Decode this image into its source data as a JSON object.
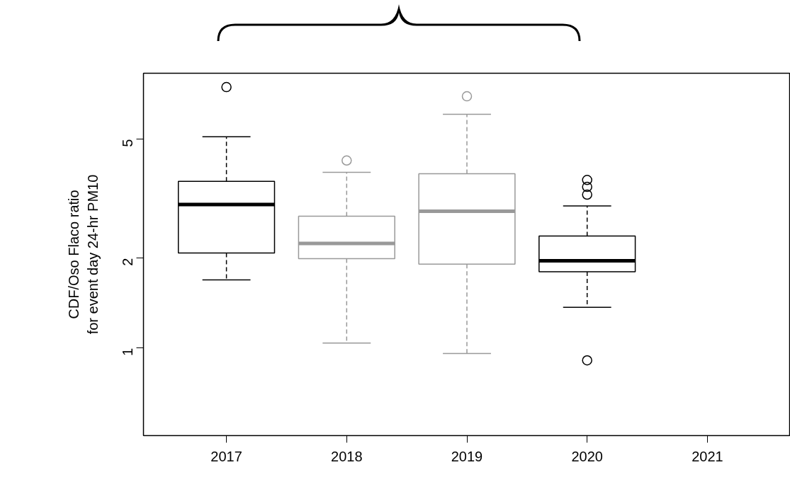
{
  "chart_data": {
    "type": "box",
    "ylabel": "CDF/Oso Flaco ratio\nfor event day 24-hr PM10",
    "categories": [
      "2017",
      "2018",
      "2019",
      "2020",
      "2021"
    ],
    "boxes": [
      {
        "low": 1.69,
        "q1": 2.08,
        "median": 3.02,
        "q3": 3.61,
        "high": 5.09,
        "outliers": [
          7.46
        ]
      },
      {
        "low": 1.04,
        "q1": 1.99,
        "median": 2.24,
        "q3": 2.76,
        "high": 3.87,
        "outliers": [
          4.24
        ]
      },
      {
        "low": 0.96,
        "q1": 1.91,
        "median": 2.87,
        "q3": 3.83,
        "high": 6.05,
        "outliers": [
          6.95
        ]
      },
      {
        "low": 1.37,
        "q1": 1.8,
        "median": 1.96,
        "q3": 2.37,
        "high": 2.99,
        "outliers": [
          3.65,
          3.46,
          3.26,
          0.91
        ]
      },
      null
    ],
    "colors": [
      "#000000",
      "#999999",
      "#999999",
      "#000000",
      null
    ],
    "log": "y",
    "ylim": [
      0.51,
      8.3
    ],
    "yticks": [
      1,
      2,
      5
    ],
    "grid": false
  }
}
